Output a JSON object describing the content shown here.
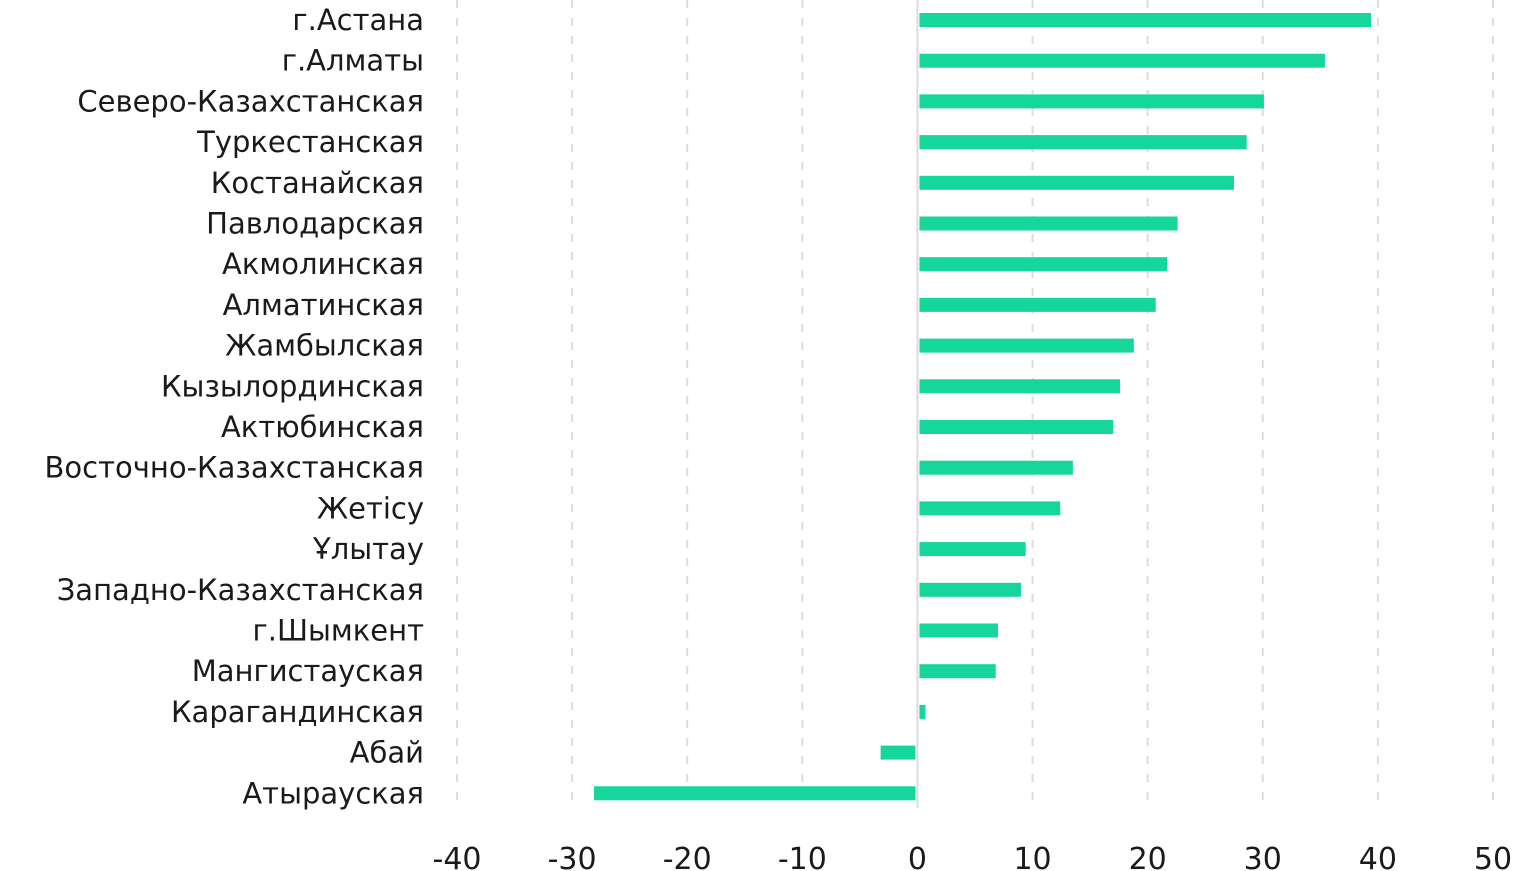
{
  "chart_data": {
    "type": "bar",
    "orientation": "horizontal",
    "title": "",
    "xlabel": "",
    "ylabel": "",
    "xlim": [
      -40,
      50
    ],
    "x_ticks": [
      "-40",
      "-30",
      "-20",
      "-10",
      "0",
      "10",
      "20",
      "30",
      "40",
      "50"
    ],
    "grid": "vertical dashed",
    "bar_color": "#17d69c",
    "categories": [
      "г.Астана",
      "г.Алматы",
      "Северо-Казахстанская",
      "Туркестанская",
      "Костанайская",
      "Павлодарская",
      "Акмолинская",
      "Алматинская",
      "Жамбылская",
      "Кызылординская",
      "Актюбинская",
      "Восточно-Казахстанская",
      "Жетісу",
      "Ұлытау",
      "Западно-Казахстанская",
      "г.Шымкент",
      "Мангистауская",
      "Карагандинская",
      "Абай",
      "Атырауская"
    ],
    "values": [
      39.4,
      35.4,
      30.1,
      28.6,
      27.5,
      22.6,
      21.7,
      20.7,
      18.8,
      17.6,
      17.0,
      13.5,
      12.4,
      9.4,
      9.0,
      7.0,
      6.8,
      0.7,
      -3.2,
      -28.1
    ]
  }
}
